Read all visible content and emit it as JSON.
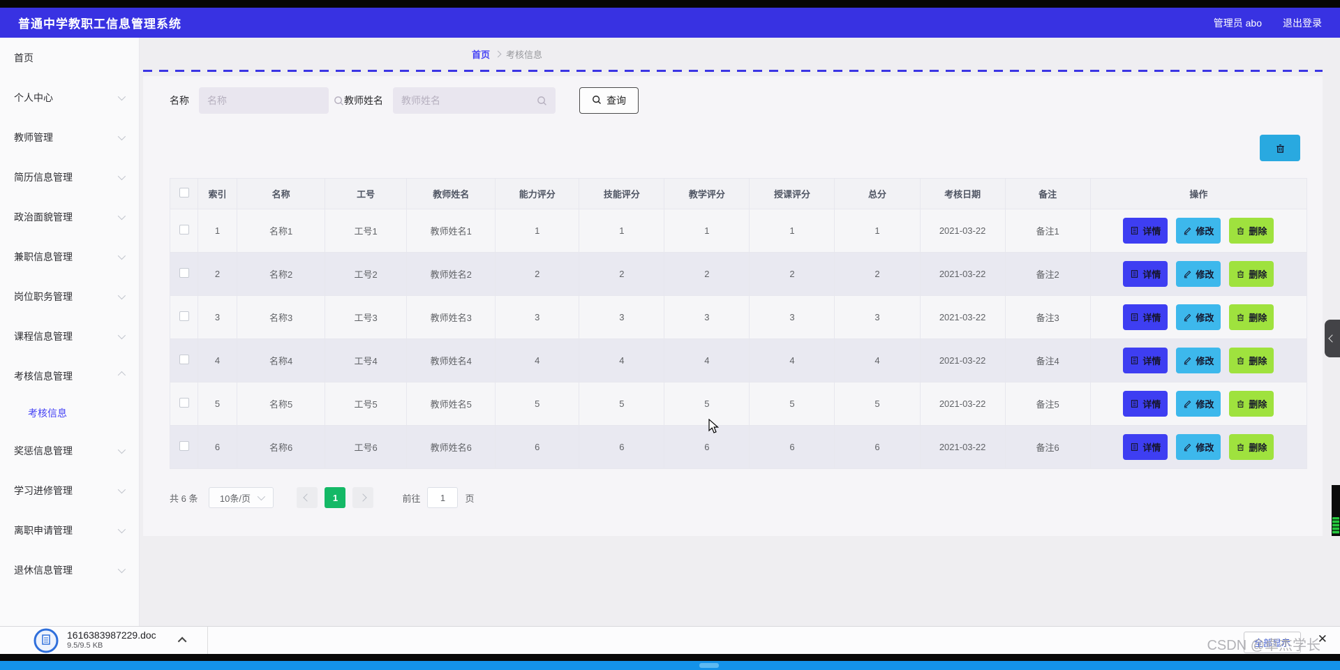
{
  "header": {
    "title": "普通中学教职工信息管理系统",
    "user": "管理员 abo",
    "logout": "退出登录"
  },
  "sidebar": {
    "items": [
      {
        "label": "首页",
        "chevron": ""
      },
      {
        "label": "个人中心",
        "chevron": "down"
      },
      {
        "label": "教师管理",
        "chevron": "down"
      },
      {
        "label": "简历信息管理",
        "chevron": "down"
      },
      {
        "label": "政治面貌管理",
        "chevron": "down"
      },
      {
        "label": "兼职信息管理",
        "chevron": "down"
      },
      {
        "label": "岗位职务管理",
        "chevron": "down"
      },
      {
        "label": "课程信息管理",
        "chevron": "down"
      },
      {
        "label": "考核信息管理",
        "chevron": "up",
        "submenu": [
          {
            "label": "考核信息",
            "active": true
          }
        ]
      },
      {
        "label": "奖惩信息管理",
        "chevron": "down"
      },
      {
        "label": "学习进修管理",
        "chevron": "down"
      },
      {
        "label": "离职申请管理",
        "chevron": "down"
      },
      {
        "label": "退休信息管理",
        "chevron": "down"
      }
    ]
  },
  "breadcrumb": {
    "home": "首页",
    "current": "考核信息"
  },
  "search": {
    "name_label": "名称",
    "name_placeholder": "名称",
    "teacher_label": "教师姓名",
    "teacher_placeholder": "教师姓名",
    "query_label": "查询"
  },
  "table": {
    "headers": [
      "索引",
      "名称",
      "工号",
      "教师姓名",
      "能力评分",
      "技能评分",
      "教学评分",
      "授课评分",
      "总分",
      "考核日期",
      "备注",
      "操作"
    ],
    "rows": [
      [
        "1",
        "名称1",
        "工号1",
        "教师姓名1",
        "1",
        "1",
        "1",
        "1",
        "1",
        "2021-03-22",
        "备注1"
      ],
      [
        "2",
        "名称2",
        "工号2",
        "教师姓名2",
        "2",
        "2",
        "2",
        "2",
        "2",
        "2021-03-22",
        "备注2"
      ],
      [
        "3",
        "名称3",
        "工号3",
        "教师姓名3",
        "3",
        "3",
        "3",
        "3",
        "3",
        "2021-03-22",
        "备注3"
      ],
      [
        "4",
        "名称4",
        "工号4",
        "教师姓名4",
        "4",
        "4",
        "4",
        "4",
        "4",
        "2021-03-22",
        "备注4"
      ],
      [
        "5",
        "名称5",
        "工号5",
        "教师姓名5",
        "5",
        "5",
        "5",
        "5",
        "5",
        "2021-03-22",
        "备注5"
      ],
      [
        "6",
        "名称6",
        "工号6",
        "教师姓名6",
        "6",
        "6",
        "6",
        "6",
        "6",
        "2021-03-22",
        "备注6"
      ]
    ],
    "actions": {
      "detail": "详情",
      "edit": "修改",
      "delete": "删除"
    }
  },
  "pagination": {
    "total": "共 6 条",
    "page_size": "10条/页",
    "current_page": "1",
    "goto": "前往",
    "goto_value": "1",
    "page_unit": "页"
  },
  "download_bar": {
    "filename": "1616383987229.doc",
    "size": "9.5/9.5 KB",
    "show_all": "全部显示"
  },
  "watermark": "CSDN @卓杰学长",
  "colors": {
    "accent": "#3832e2",
    "link": "#4542f5",
    "dashed": "#3b35e4",
    "detail_btn": "#3e3ef2",
    "edit_btn": "#3db8ec",
    "delete_btn": "#9fe23e",
    "pager_active": "#14b866",
    "taskbar": "#1492e9",
    "batch_btn": "#29a9e0"
  }
}
